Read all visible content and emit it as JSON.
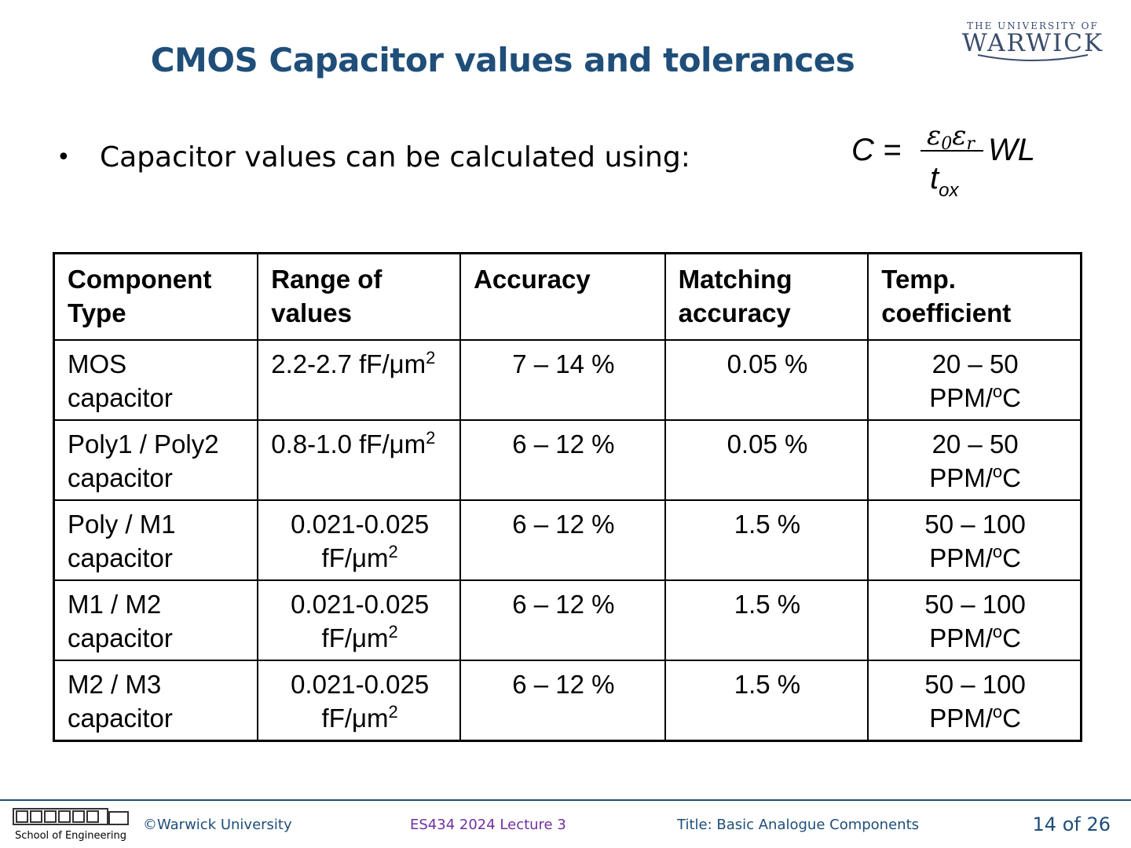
{
  "logo": {
    "top": "THE UNIVERSITY OF",
    "main": "WARWICK"
  },
  "slide": {
    "title": "CMOS Capacitor values and tolerances",
    "bullet": "Capacitor values can be calculated using:"
  },
  "formula": {
    "lhs": "C =",
    "numerator": "ε0εr",
    "denominator": "tox",
    "rhs": "WL"
  },
  "table": {
    "headers": [
      [
        "Component",
        "Type"
      ],
      [
        "Range of",
        "values"
      ],
      [
        "Accuracy"
      ],
      [
        "Matching",
        "accuracy"
      ],
      [
        "Temp.",
        "coefficient"
      ]
    ],
    "rows": [
      {
        "type": [
          "MOS",
          "capacitor"
        ],
        "range": [
          "2.2-2.7 fF/μm",
          "2"
        ],
        "accuracy": "7 – 14 %",
        "matching": "0.05 %",
        "temp_range": "20 – 50",
        "temp_unit": [
          "PPM/",
          "o",
          "C"
        ]
      },
      {
        "type": [
          "Poly1 / Poly2",
          "capacitor"
        ],
        "range": [
          "0.8-1.0 fF/μm",
          "2"
        ],
        "accuracy": "6 – 12 %",
        "matching": "0.05 %",
        "temp_range": "20 – 50",
        "temp_unit": [
          "PPM/",
          "o",
          "C"
        ]
      },
      {
        "type": [
          "Poly / M1",
          "capacitor"
        ],
        "range": [
          "0.021-0.025",
          "fF/μm",
          "2"
        ],
        "accuracy": "6 – 12 %",
        "matching": "1.5 %",
        "temp_range": "50 – 100",
        "temp_unit": [
          "PPM/",
          "o",
          "C"
        ]
      },
      {
        "type": [
          "M1 / M2",
          "capacitor"
        ],
        "range": [
          "0.021-0.025",
          "fF/μm",
          "2"
        ],
        "accuracy": "6 – 12 %",
        "matching": "1.5 %",
        "temp_range": "50 – 100",
        "temp_unit": [
          "PPM/",
          "o",
          "C"
        ]
      },
      {
        "type": [
          "M2 / M3",
          "capacitor"
        ],
        "range": [
          "0.021-0.025",
          "fF/μm",
          "2"
        ],
        "accuracy": "6 – 12 %",
        "matching": "1.5 %",
        "temp_range": "50 – 100",
        "temp_unit": [
          "PPM/",
          "o",
          "C"
        ]
      }
    ]
  },
  "footer": {
    "school": "School of Engineering",
    "copyright": "©Warwick University",
    "lecture": "ES434 2024 Lecture 3",
    "title": "Title: Basic Analogue Components",
    "page": "14 of 26"
  },
  "colors": {
    "title": "#1f4e79",
    "footer_lecture": "#7030a0",
    "logo": "#3a4d6e"
  }
}
